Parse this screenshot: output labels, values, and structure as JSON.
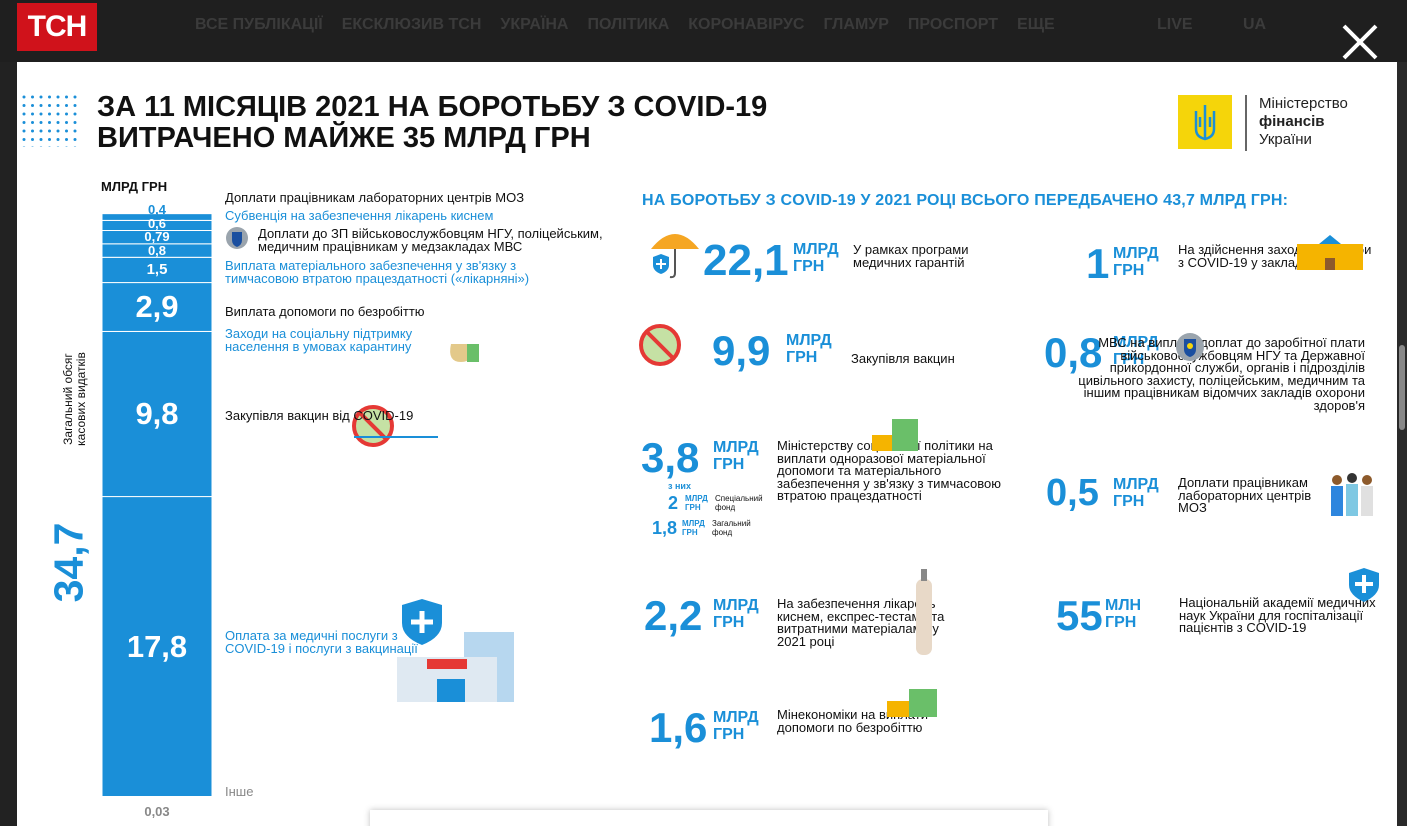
{
  "nav": {
    "logo": "ТСН",
    "items": [
      "ВСЕ ПУБЛІКАЦІЇ",
      "ЕКСКЛЮЗИВ ТСН",
      "УКРАЇНА",
      "ПОЛІТИКА",
      "КОРОНАВІРУС",
      "ГЛАМУР",
      "ПРОСПОРТ",
      "ЕЩЕ"
    ],
    "live": "LIVE",
    "lang": "UA"
  },
  "header": {
    "title_lines": [
      "ЗА 11 МІСЯЦІВ 2021 НА БОРОТЬБУ З COVID-19",
      "ВИТРАЧЕНО МАЙЖЕ 35 МЛРД ГРН"
    ],
    "ministry": [
      "Міністерство",
      "фінансів",
      "України"
    ]
  },
  "summary": {
    "total": "34,7",
    "caption": [
      "Загальний обсяг",
      "касових видатків"
    ]
  },
  "chart_data": {
    "type": "stacked-bar",
    "y_label": "МЛРД ГРН",
    "series": [
      {
        "name": "Інше",
        "color": "#c9dbe8",
        "name_color": "#888888",
        "values": [
          0.03
        ],
        "value_labels": [
          "0,03"
        ]
      },
      {
        "name": "Оплата за медичні послуги з COVID-19 і послуги з вакцинації",
        "color": "#1a8fd8",
        "name_color": "#1a8fd8",
        "values": [
          17.8
        ],
        "value_labels": [
          "17,8"
        ]
      },
      {
        "name": "Закупівля вакцин від COVID-19",
        "color": "#1a8fd8",
        "name_color": "#111111",
        "values": [
          9.8
        ],
        "value_labels": [
          "9,8"
        ]
      },
      {
        "name": "Заходи на соціальну підтримку населення в умовах карантину",
        "color": "#1a8fd8",
        "name_color": "#1a8fd8",
        "values": [
          2.9
        ],
        "value_labels": [
          "2,9"
        ]
      },
      {
        "name": "Виплата допомоги по безробіттю",
        "color": "#1a8fd8",
        "name_color": "#111111",
        "values": [
          1.5
        ],
        "value_labels": [
          "1,5"
        ]
      },
      {
        "name": "Виплата матеріального забезпечення у зв'язку з тимчасовою втратою працездатності («лікарняні»)",
        "color": "#1a8fd8",
        "name_color": "#1a8fd8",
        "values": [
          0.8
        ],
        "value_labels": [
          "0,8"
        ]
      },
      {
        "name": "Доплати до ЗП військовослужбовцям НГУ, поліцейським, медичним працівникам у медзакладах МВС",
        "color": "#1a8fd8",
        "name_color": "#111111",
        "values": [
          0.79
        ],
        "value_labels": [
          "0,79"
        ]
      },
      {
        "name": "Субвенція на забезпечення лікарень киснем",
        "color": "#1a8fd8",
        "name_color": "#1a8fd8",
        "values": [
          0.6
        ],
        "value_labels": [
          "0,6"
        ]
      },
      {
        "name": "Доплати працівникам лабораторних центрів МОЗ",
        "color": "#1a8fd8",
        "name_color": "#111111",
        "values": [
          0.4
        ],
        "value_labels": [
          "0,4"
        ]
      }
    ]
  },
  "plan": {
    "heading": "НА БОРОТЬБУ З COVID-19 У 2021 РОЦІ ВСЬОГО ПЕРЕДБАЧЕНО 43,7 МЛРД ГРН:",
    "items": [
      {
        "amount": "22,1",
        "unit": "МЛРД ГРН",
        "text": "У рамках програми медичних гарантій"
      },
      {
        "amount": "9,9",
        "unit": "МЛРД ГРН",
        "text": "Закупівля вакцин"
      },
      {
        "amount": "3,8",
        "unit": "МЛРД ГРН",
        "text": "Міністерству соціальної політики на виплати одноразової матеріальної допомоги та матеріального забезпечення у зв'язку з тимчасовою втратою працездатності"
      },
      {
        "amount": "2,2",
        "unit": "МЛРД ГРН",
        "text": "На забезпечення лікарень киснем, експрес-тестами та витратними матеріалами у 2021 році"
      },
      {
        "amount": "1,6",
        "unit": "МЛРД ГРН",
        "text": "Мінекономіки на виплати допомоги по безробіттю"
      },
      {
        "amount": "1",
        "unit": "МЛРД ГРН",
        "text": "На здійснення заходів боротьби з COVID-19 у закладах освіти"
      },
      {
        "amount": "0,8",
        "unit": "МЛРД ГРН",
        "text": "МВС на виплату доплат до заробітної плати військовослужбовцям НГУ та Державної прикордонної служби, органів і підрозділів цивільного захисту, поліцейським, медичним та іншим працівникам відомчих закладів охорони здоров'я"
      },
      {
        "amount": "0,5",
        "unit": "МЛРД ГРН",
        "text": "Доплати працівникам лабораторних центрів МОЗ"
      },
      {
        "amount": "55",
        "unit": "МЛН ГРН",
        "text": "Національній академії медичних наук України для госпіталізації пацієнтів з COVID-19"
      }
    ],
    "breakdown": {
      "intro": "з них",
      "parts": [
        {
          "amount": "2",
          "unit": "МЛРД ГРН",
          "text": "Спеціальний фонд"
        },
        {
          "amount": "1,8",
          "unit": "МЛРД ГРН",
          "text": "Загальний фонд"
        }
      ]
    }
  }
}
